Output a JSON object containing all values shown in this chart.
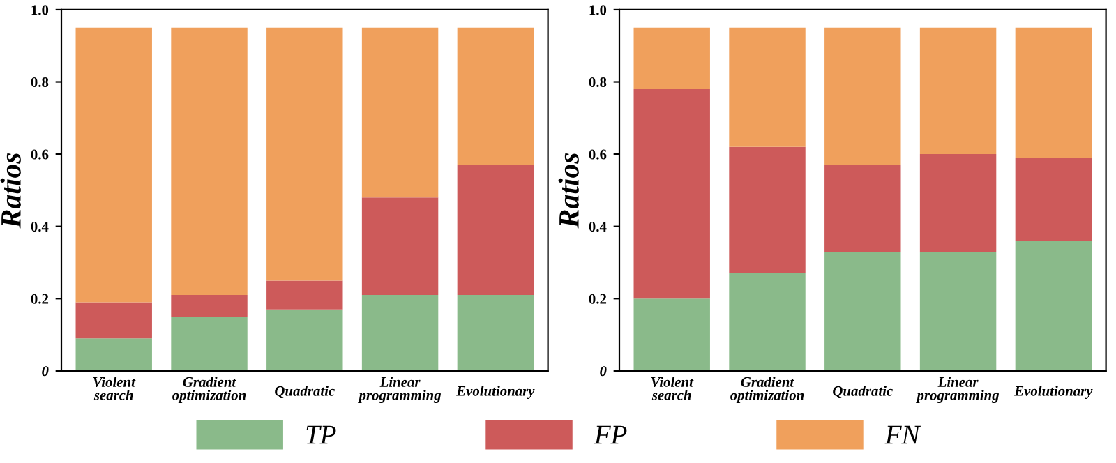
{
  "chart_data": [
    {
      "type": "bar",
      "stacked": true,
      "ylabel": "Ratios",
      "categories": [
        "Violent\nsearch",
        "Gradient\noptimization",
        "Quadratic",
        "Linear\nprogramming",
        "Evolutionary"
      ],
      "ylim": [
        0,
        1
      ],
      "yticks": [
        0,
        0.2,
        0.4,
        0.6,
        0.8,
        {
          "value": 1,
          "label": "1.0"
        }
      ],
      "legend": "bottom",
      "series": [
        {
          "name": "TP",
          "color": "#8aba8a",
          "values": [
            0.09,
            0.15,
            0.17,
            0.21,
            0.21
          ]
        },
        {
          "name": "FP",
          "color": "#cd5a5a",
          "values": [
            0.1,
            0.06,
            0.08,
            0.27,
            0.36
          ]
        },
        {
          "name": "FN",
          "color": "#f0a05c",
          "values": [
            0.76,
            0.74,
            0.7,
            0.47,
            0.38
          ]
        }
      ]
    },
    {
      "type": "bar",
      "stacked": true,
      "ylabel": "Ratios",
      "categories": [
        "Violent\nsearch",
        "Gradient\noptimization",
        "Quadratic",
        "Linear\nprogramming",
        "Evolutionary"
      ],
      "ylim": [
        0,
        1
      ],
      "yticks": [
        0,
        0.2,
        0.4,
        0.6,
        0.8,
        {
          "value": 1,
          "label": "1.0"
        }
      ],
      "series": [
        {
          "color": "#8aba8a",
          "values": [
            0.2,
            0.27,
            0.33,
            0.33,
            0.36
          ]
        },
        {
          "color": "#cd5a5a",
          "values": [
            0.58,
            0.35,
            0.24,
            0.27,
            0.23
          ]
        },
        {
          "color": "#f0a05c",
          "values": [
            0.17,
            0.33,
            0.38,
            0.35,
            0.36
          ]
        }
      ]
    }
  ]
}
